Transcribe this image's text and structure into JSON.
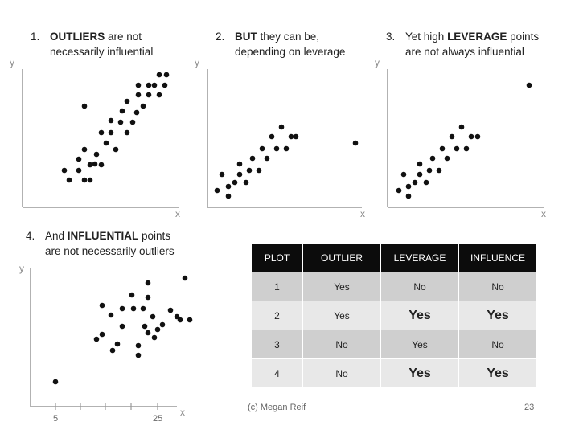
{
  "panels": [
    {
      "num": "1.",
      "line1_bold": "OUTLIERS",
      "line1_rest": " are not",
      "line2": "necessarily influential"
    },
    {
      "num": "2.",
      "line1_bold": "BUT",
      "line1_rest": " they can be,",
      "line2": "depending on leverage"
    },
    {
      "num": "3.",
      "line1_pre": "Yet high ",
      "line1_bold": "LEVERAGE",
      "line1_rest": " points",
      "line2": "are not always influential"
    },
    {
      "num": "4.",
      "line1_pre": "And ",
      "line1_bold": "INFLUENTIAL",
      "line1_rest": " points",
      "line2": "are not necessarily outliers"
    }
  ],
  "axis": {
    "x": "x",
    "y": "y"
  },
  "plot4_ticks": [
    "5",
    "25"
  ],
  "table": {
    "headers": [
      "PLOT",
      "OUTLIER",
      "LEVERAGE",
      "INFLUENCE"
    ],
    "rows": [
      [
        "1",
        "Yes",
        "No",
        "No"
      ],
      [
        "2",
        "Yes",
        "Yes",
        "Yes"
      ],
      [
        "3",
        "No",
        "Yes",
        "No"
      ],
      [
        "4",
        "No",
        "Yes",
        "Yes"
      ]
    ]
  },
  "footer": {
    "credit": "(c) Megan Reif",
    "page": "23"
  }
}
